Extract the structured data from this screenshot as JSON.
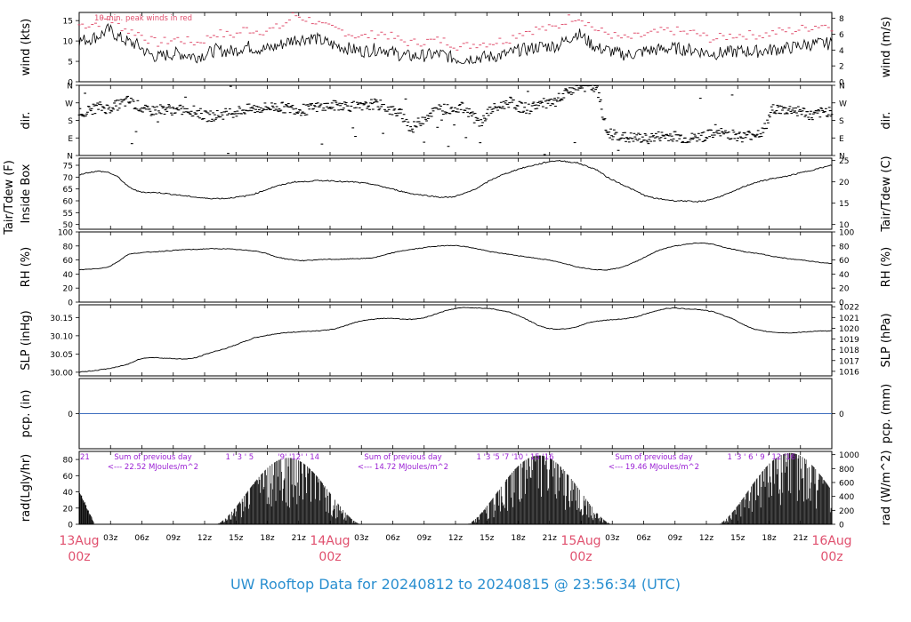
{
  "colors": {
    "red": "#e0506e",
    "purple": "#9a1fd4",
    "blue": "#2a8fd0",
    "axis": "#000000",
    "zero_line": "#3f6fbf"
  },
  "footer": "UW Rooftop Data for 20240812  to  20240815 @ 23:56:34  (UTC)",
  "chart_data": [
    {
      "type": "line",
      "id": "wind",
      "ylabel_left": "wind (kts)",
      "ylabel_right": "wind (m/s)",
      "ylim": [
        0,
        17
      ],
      "yticks_left": [
        0,
        5,
        10,
        15
      ],
      "yticks_right": [
        0,
        2,
        4,
        6,
        8
      ],
      "annotation": "10 min. peak winds in red",
      "series": [
        {
          "name": "wind",
          "values": [
            10.0,
            10.5,
            11.2,
            12.8,
            11.0,
            9.8,
            9.0,
            7.0,
            6.0,
            6.6,
            7.0,
            6.6,
            6.2,
            6.8,
            7.8,
            7.5,
            7.6,
            8.8,
            8.2,
            8.0,
            8.5,
            9.5,
            10.4,
            10.6,
            10.8,
            9.8,
            9.0,
            8.5,
            7.9,
            7.5,
            7.8,
            8.2,
            7.2,
            6.5,
            6.2,
            6.4,
            6.6,
            6.8,
            6.0,
            5.5,
            5.8,
            6.0,
            6.1,
            6.4,
            6.9,
            7.8,
            8.0,
            8.6,
            8.7,
            8.9,
            10.5,
            12.0,
            10.0,
            8.2,
            7.8,
            7.0,
            6.6,
            6.9,
            7.6,
            7.8,
            8.1,
            8.2,
            7.9,
            7.8,
            7.2,
            6.9,
            7.1,
            7.4,
            7.5,
            7.4,
            7.6,
            7.9,
            8.1,
            8.4,
            9.0,
            9.2,
            9.4,
            9.3
          ]
        },
        {
          "name": "10 min. peak winds",
          "values": [
            14.0,
            14.0,
            14.5,
            15.5,
            14.0,
            12.5,
            12.0,
            10.5,
            9.5,
            10.0,
            10.5,
            10.0,
            9.5,
            10.5,
            12.0,
            11.5,
            11.5,
            13.0,
            12.5,
            12.5,
            13.0,
            14.0,
            16.5,
            15.5,
            15.0,
            13.5,
            13.0,
            12.5,
            11.5,
            11.0,
            11.5,
            12.0,
            11.0,
            10.0,
            9.5,
            9.8,
            10.0,
            10.2,
            9.5,
            8.5,
            9.0,
            9.5,
            9.5,
            10.0,
            10.5,
            12.0,
            12.5,
            13.0,
            13.0,
            13.5,
            15.5,
            16.0,
            14.5,
            12.5,
            12.0,
            11.0,
            10.5,
            11.0,
            11.5,
            12.0,
            12.5,
            12.5,
            12.0,
            12.0,
            11.0,
            10.5,
            11.0,
            11.5,
            11.5,
            11.5,
            11.5,
            12.0,
            12.5,
            12.5,
            13.0,
            13.5,
            14.0,
            13.5
          ]
        }
      ]
    },
    {
      "type": "scatter",
      "id": "dir",
      "ylabel_left": "dir.",
      "ylabel_right": "dir.",
      "ylim": [
        0,
        360
      ],
      "ytick_labels": [
        "N",
        "E",
        "S",
        "W",
        "N"
      ],
      "series": [
        {
          "name": "direction",
          "values": [
            225,
            230,
            250,
            240,
            260,
            280,
            255,
            225,
            235,
            240,
            230,
            235,
            225,
            200,
            205,
            215,
            225,
            235,
            240,
            245,
            250,
            245,
            240,
            230,
            245,
            250,
            255,
            260,
            250,
            245,
            265,
            255,
            230,
            210,
            135,
            180,
            220,
            240,
            235,
            250,
            220,
            160,
            230,
            250,
            275,
            250,
            240,
            265,
            265,
            270,
            330,
            350,
            355,
            340,
            115,
            105,
            90,
            90,
            85,
            95,
            100,
            100,
            85,
            90,
            100,
            110,
            115,
            105,
            95,
            110,
            120,
            245,
            230,
            235,
            225,
            200,
            220,
            230
          ]
        }
      ]
    },
    {
      "type": "line",
      "id": "temp",
      "ylabel_left": "Tair/Tdew (F)\nInside Box",
      "ylabel_right": "Tair/Tdew (C)",
      "ylim": [
        48,
        78
      ],
      "yticks_left": [
        50,
        55,
        60,
        65,
        70,
        75
      ],
      "yticks_right": [
        10,
        15,
        20,
        25
      ],
      "series": [
        {
          "name": "Tair",
          "values": [
            71.0,
            72.0,
            72.5,
            72.0,
            70.0,
            66.0,
            64.0,
            63.5,
            63.5,
            63.0,
            62.5,
            62.0,
            61.5,
            61.0,
            61.0,
            61.0,
            61.5,
            62.0,
            63.0,
            64.5,
            66.0,
            67.0,
            68.0,
            68.0,
            68.5,
            68.5,
            68.5,
            68.0,
            68.0,
            67.5,
            67.0,
            66.0,
            65.0,
            64.0,
            63.0,
            62.5,
            62.0,
            61.5,
            61.5,
            62.5,
            64.0,
            66.0,
            68.5,
            70.5,
            72.0,
            73.5,
            74.5,
            75.5,
            76.5,
            77.0,
            76.5,
            76.0,
            74.5,
            73.0,
            70.0,
            68.0,
            66.0,
            64.0,
            62.0,
            61.0,
            60.5,
            60.0,
            60.0,
            59.5,
            60.0,
            61.0,
            62.5,
            64.0,
            66.0,
            67.5,
            68.5,
            69.5,
            70.0,
            71.0,
            72.0,
            73.0,
            74.0,
            75.0
          ]
        }
      ]
    },
    {
      "type": "line",
      "id": "rh",
      "ylabel_left": "RH (%)",
      "ylabel_right": "RH (%)",
      "ylim": [
        0,
        100
      ],
      "yticks_left": [
        0,
        20,
        40,
        60,
        80,
        100
      ],
      "yticks_right": [
        0,
        20,
        40,
        60,
        80,
        100
      ],
      "series": [
        {
          "name": "RH",
          "values": [
            46,
            47,
            48,
            50,
            58,
            68,
            70,
            71,
            72,
            73,
            74,
            75,
            75,
            76,
            76,
            76,
            75,
            74,
            73,
            70,
            65,
            62,
            60,
            59,
            60,
            61,
            61,
            61,
            62,
            62,
            63,
            66,
            70,
            73,
            75,
            77,
            79,
            80,
            81,
            80,
            78,
            75,
            72,
            70,
            68,
            66,
            64,
            62,
            60,
            57,
            54,
            50,
            48,
            46,
            46,
            48,
            52,
            58,
            65,
            72,
            77,
            80,
            82,
            84,
            84,
            82,
            78,
            75,
            72,
            70,
            68,
            65,
            63,
            61,
            60,
            58,
            56,
            55
          ]
        }
      ]
    },
    {
      "type": "line",
      "id": "slp",
      "ylabel_left": "SLP (inHg)",
      "ylabel_right": "SLP (hPa)",
      "ylim": [
        29.99,
        30.185
      ],
      "yticks_left": [
        30.0,
        30.05,
        30.1,
        30.15
      ],
      "ytick_labels_left": [
        "30.00",
        "30.05",
        "30.10",
        "30.15"
      ],
      "yticks_right": [
        1016,
        1017,
        1018,
        1019,
        1020,
        1021,
        1022
      ],
      "series": [
        {
          "name": "SLP",
          "values": [
            30.0,
            30.003,
            30.006,
            30.01,
            30.015,
            30.022,
            30.035,
            30.04,
            30.04,
            30.038,
            30.037,
            30.036,
            30.04,
            30.05,
            30.058,
            30.065,
            30.075,
            30.085,
            30.095,
            30.1,
            30.105,
            30.108,
            30.11,
            30.112,
            30.113,
            30.115,
            30.118,
            30.125,
            30.135,
            30.142,
            30.145,
            30.148,
            30.148,
            30.146,
            30.145,
            30.148,
            30.155,
            30.165,
            30.172,
            30.177,
            30.177,
            30.176,
            30.175,
            30.17,
            30.165,
            30.155,
            30.142,
            30.128,
            30.12,
            30.118,
            30.12,
            30.125,
            30.135,
            30.14,
            30.143,
            30.145,
            30.147,
            30.152,
            30.16,
            30.168,
            30.175,
            30.176,
            30.174,
            30.173,
            30.17,
            30.165,
            30.155,
            30.145,
            30.13,
            30.118,
            30.113,
            30.11,
            30.108,
            30.108,
            30.11,
            30.112,
            30.113,
            30.113
          ]
        }
      ]
    },
    {
      "type": "line",
      "id": "pcp",
      "ylabel_left": "pcp. (in)",
      "ylabel_right": "pcp. (mm)",
      "ylim": [
        -1,
        1
      ],
      "yticks_left": [
        0
      ],
      "yticks_right": [
        0
      ],
      "series": [
        {
          "name": "pcp",
          "values": [
            0,
            0
          ]
        }
      ]
    },
    {
      "type": "bar",
      "id": "rad",
      "ylabel_left": "rad(Lgly/hr)",
      "ylabel_right": "rad (W/m^2)",
      "ylim": [
        0,
        90
      ],
      "yticks_left": [
        0,
        20,
        40,
        60,
        80
      ],
      "yticks_right": [
        0,
        200,
        400,
        600,
        800,
        1000
      ],
      "day_peaks": [
        82,
        85,
        88
      ],
      "day_start_hours": [
        13,
        13,
        13
      ],
      "day_end_hours": [
        27,
        27,
        27
      ],
      "daily_sum_label": "Sum of previous day",
      "daily_sums": [
        "<--- 22.52 MJoules/m^2",
        "<--- 14.72 MJoules/m^2",
        "<--- 19.46 MJoules/m^2"
      ],
      "hour_labels": [
        {
          "day": 0,
          "hour": -3,
          "text": "21"
        },
        {
          "day": 0,
          "hour": 14,
          "text": "1  '  3  '  5"
        },
        {
          "day": 0,
          "hour": 19,
          "text": "'9' '12' '  14"
        },
        {
          "day": 1,
          "hour": 14,
          "text": "1  '3  '5  '7  '10 ' 15  '16"
        },
        {
          "day": 2,
          "hour": 14,
          "text": "1  '3  '  6  '  9  ' 12  '16"
        }
      ]
    }
  ],
  "x_axis": {
    "hour_ticks": [
      "03z",
      "06z",
      "09z",
      "12z",
      "15z",
      "18z",
      "21z"
    ],
    "day_labels": [
      {
        "date": "13Aug",
        "hour": "00z"
      },
      {
        "date": "14Aug",
        "hour": "00z"
      },
      {
        "date": "15Aug",
        "hour": "00z"
      },
      {
        "date": "16Aug",
        "hour": "00z"
      }
    ]
  }
}
